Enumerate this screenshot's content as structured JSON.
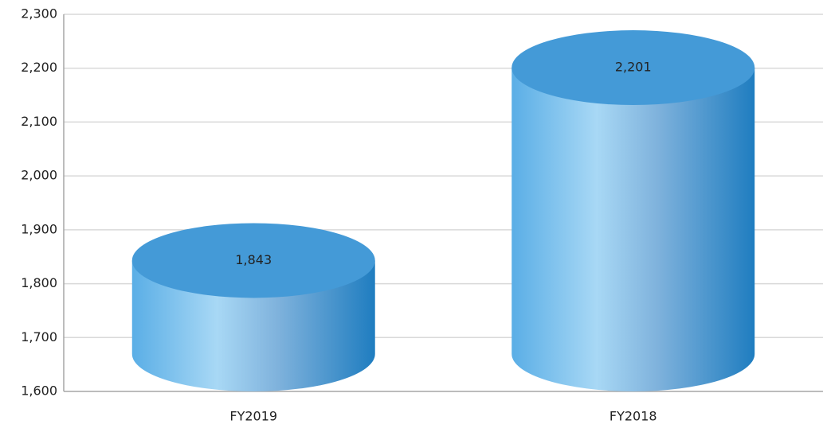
{
  "chart_data": {
    "type": "bar",
    "categories": [
      "FY2019",
      "FY2018"
    ],
    "values": [
      1843,
      2201
    ],
    "value_labels": [
      "1,843",
      "2,201"
    ],
    "color": "#449ad7",
    "ylim": [
      1600,
      2300
    ],
    "yticks": [
      {
        "value": 1600,
        "label": "1,600"
      },
      {
        "value": 1700,
        "label": "1,700"
      },
      {
        "value": 1800,
        "label": "1,800"
      },
      {
        "value": 1900,
        "label": "1,900"
      },
      {
        "value": 2000,
        "label": "2,000"
      },
      {
        "value": 2100,
        "label": "2,100"
      },
      {
        "value": 2200,
        "label": "2,200"
      },
      {
        "value": 2300,
        "label": "2,300"
      }
    ],
    "grid": true
  }
}
